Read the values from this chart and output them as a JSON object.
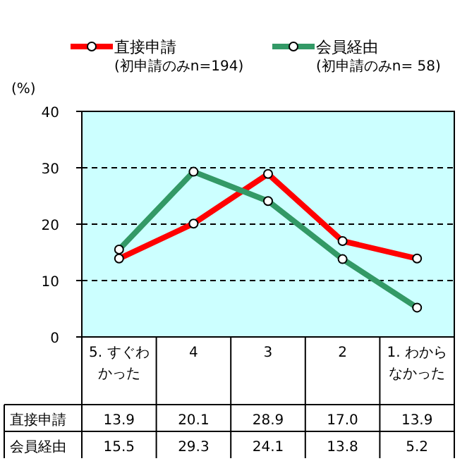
{
  "chart_data": {
    "type": "line",
    "ylabel": "(%)",
    "categories": [
      "5. すぐわかった",
      "4",
      "3",
      "2",
      "1. わからなかった"
    ],
    "series": [
      {
        "name": "直接申請",
        "color": "#ff0000",
        "values": [
          13.9,
          20.1,
          28.9,
          17.0,
          13.9
        ],
        "value_labels": [
          "13.9",
          "20.1",
          "28.9",
          "17.0",
          "13.9"
        ]
      },
      {
        "name": "会員経由",
        "color": "#339966",
        "values": [
          15.5,
          29.3,
          24.1,
          13.8,
          5.2
        ],
        "value_labels": [
          "15.5",
          "29.3",
          "24.1",
          "13.8",
          "5.2"
        ]
      }
    ],
    "annotations": [
      "(初申請のみn=194)",
      "(初申請のみn= 58)"
    ],
    "ylim": [
      0,
      40
    ],
    "yticks": [
      0,
      10,
      20,
      30,
      40
    ],
    "grid": "y",
    "legend": "top",
    "marker": "circle"
  }
}
